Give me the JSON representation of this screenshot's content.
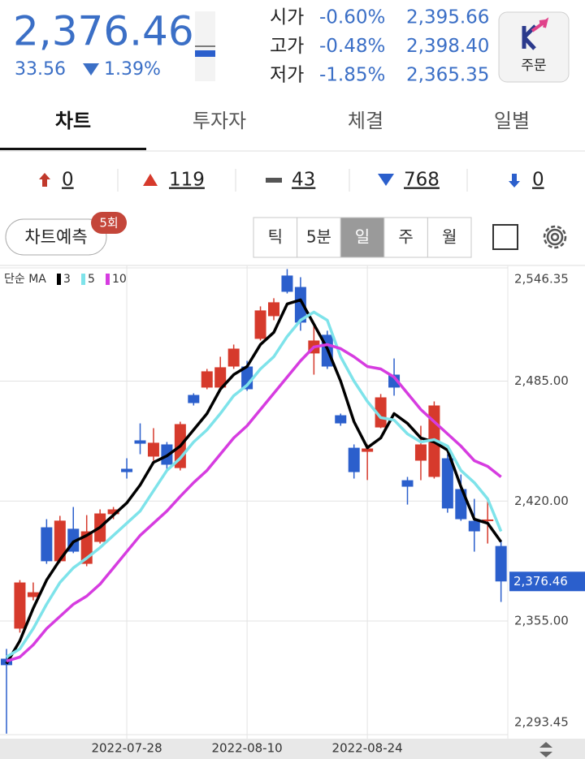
{
  "header": {
    "price": "2,376.46",
    "change": "33.56",
    "change_pct": "1.39%",
    "quotes": [
      {
        "label": "시가",
        "pct": "-0.60%",
        "value": "2,395.66"
      },
      {
        "label": "고가",
        "pct": "-0.48%",
        "value": "2,398.40"
      },
      {
        "label": "저가",
        "pct": "-1.85%",
        "value": "2,365.35"
      }
    ],
    "order_button": "주문"
  },
  "tabs": [
    "차트",
    "투자자",
    "체결",
    "일별"
  ],
  "breadth": [
    0,
    119,
    43,
    768,
    0
  ],
  "controls": {
    "forecast": "차트예측",
    "forecast_badge": "5회",
    "periods": [
      "틱",
      "5분",
      "일",
      "주",
      "월"
    ],
    "selected_period": "일"
  },
  "chart_data": {
    "type": "candlestick",
    "legend_title": "단순 MA",
    "categories": [
      null,
      null,
      null,
      null,
      null,
      null,
      null,
      null,
      null,
      "2022-07-28",
      null,
      null,
      null,
      null,
      null,
      null,
      null,
      null,
      "2022-08-10",
      null,
      null,
      null,
      null,
      null,
      null,
      null,
      null,
      "2022-08-24",
      null,
      null,
      null,
      null,
      null,
      null,
      null,
      null,
      null,
      null
    ],
    "open": [
      2334.6,
      2350.9,
      2368.0,
      2405.8,
      2387.4,
      2405.0,
      2386.0,
      2397.9,
      2412.9,
      2437.5,
      2452.9,
      2444.1,
      2450.7,
      2437.9,
      2477.5,
      2481.5,
      2481.5,
      2492.9,
      2492.9,
      2507.9,
      2520.2,
      2542.2,
      2536.0,
      2500.0,
      2510.1,
      2466.5,
      2448.9,
      2446.7,
      2459.9,
      2488.5,
      2431.3,
      2441.9,
      2433.1,
      2443.2,
      2426.5,
      2409.3,
      2409.3,
      2395.66
    ],
    "high": [
      2339.9,
      2377.2,
      2375.9,
      2410.2,
      2412.0,
      2416.8,
      2412.4,
      2415.5,
      2416.8,
      2443.2,
      2462.1,
      2459.5,
      2452.0,
      2463.0,
      2478.4,
      2491.6,
      2498.2,
      2504.8,
      2496.0,
      2525.5,
      2529.9,
      2545.7,
      2541.3,
      2515.8,
      2512.3,
      2467.4,
      2450.7,
      2450.7,
      2478.0,
      2497.3,
      2433.1,
      2460.8,
      2474.0,
      2445.4,
      2434.4,
      2421.2,
      2421.2,
      2398.4
    ],
    "low": [
      2294.0,
      2348.7,
      2366.2,
      2386.0,
      2386.5,
      2391.8,
      2384.7,
      2397.0,
      2410.2,
      2432.2,
      2445.4,
      2441.9,
      2437.5,
      2436.6,
      2471.8,
      2480.6,
      2479.7,
      2491.6,
      2479.7,
      2507.0,
      2518.0,
      2532.5,
      2512.3,
      2488.5,
      2491.6,
      2460.8,
      2432.2,
      2431.4,
      2459.5,
      2477.1,
      2418.1,
      2431.3,
      2432.2,
      2413.7,
      2409.3,
      2392.6,
      2397.0,
      2365.35
    ],
    "close": [
      2331.1,
      2375.9,
      2370.6,
      2387.4,
      2409.4,
      2392.6,
      2403.6,
      2413.3,
      2415.5,
      2435.7,
      2451.1,
      2451.6,
      2439.7,
      2461.7,
      2473.1,
      2490.3,
      2492.5,
      2502.6,
      2480.6,
      2523.3,
      2527.7,
      2533.4,
      2516.7,
      2507.0,
      2492.9,
      2462.1,
      2435.7,
      2448.5,
      2476.2,
      2481.5,
      2427.8,
      2450.7,
      2471.8,
      2416.0,
      2410.2,
      2403.6,
      2410.02,
      2376.46
    ],
    "up_color": "#d63a2c",
    "down_color": "#2b5fcc",
    "series": [
      {
        "name": "3",
        "color": "#000000",
        "values": [
          2331.9,
          2344.3,
          2361.9,
          2377.2,
          2388.2,
          2397.9,
          2401.4,
          2405.8,
          2412.4,
          2419.0,
          2428.7,
          2441.0,
          2444.5,
          2449.8,
          2458.6,
          2467.4,
          2480.6,
          2488.5,
          2492.9,
          2504.8,
          2511.4,
          2526.8,
          2529.0,
          2515.8,
          2502.6,
          2485.0,
          2463.0,
          2448.9,
          2454.2,
          2467.4,
          2462.1,
          2454.2,
          2452.0,
          2447.6,
          2427.8,
          2410.2,
          2408.0,
          2397.9
        ]
      },
      {
        "name": "5",
        "color": "#7ee3ea",
        "values": [
          2335.5,
          2339.9,
          2350.9,
          2364.1,
          2375.9,
          2383.8,
          2389.1,
          2394.8,
          2401.4,
          2408.0,
          2414.6,
          2425.6,
          2436.6,
          2443.2,
          2452.0,
          2458.6,
          2467.4,
          2477.1,
          2482.8,
          2491.6,
          2498.2,
          2509.2,
          2518.0,
          2522.4,
          2518.0,
          2498.2,
          2485.0,
          2474.0,
          2465.2,
          2463.9,
          2456.4,
          2452.0,
          2453.3,
          2449.8,
          2436.6,
          2430.0,
          2421.2,
          2403.6
        ]
      },
      {
        "name": "10",
        "color": "#d63ce0",
        "values": [
          2333.3,
          2335.5,
          2342.1,
          2350.9,
          2357.5,
          2364.1,
          2368.5,
          2375.0,
          2383.8,
          2392.6,
          2401.4,
          2408.0,
          2414.6,
          2422.5,
          2430.0,
          2436.6,
          2445.4,
          2454.2,
          2460.8,
          2469.6,
          2478.4,
          2487.2,
          2496.0,
          2503.5,
          2504.8,
          2502.6,
          2498.2,
          2492.9,
          2491.6,
          2487.2,
          2478.4,
          2469.6,
          2463.0,
          2456.4,
          2449.8,
          2441.9,
          2438.8,
          2433.1
        ]
      }
    ],
    "ylim": [
      2293.45,
      2546.35
    ],
    "yticks": [
      {
        "value": 2546.35,
        "label": "2,546.35"
      },
      {
        "value": 2485.0,
        "label": "2,485.00"
      },
      {
        "value": 2420.0,
        "label": "2,420.00"
      },
      {
        "value": 2355.0,
        "label": "2,355.00"
      },
      {
        "value": 2293.45,
        "label": "2,293.45"
      }
    ],
    "grid": true
  }
}
